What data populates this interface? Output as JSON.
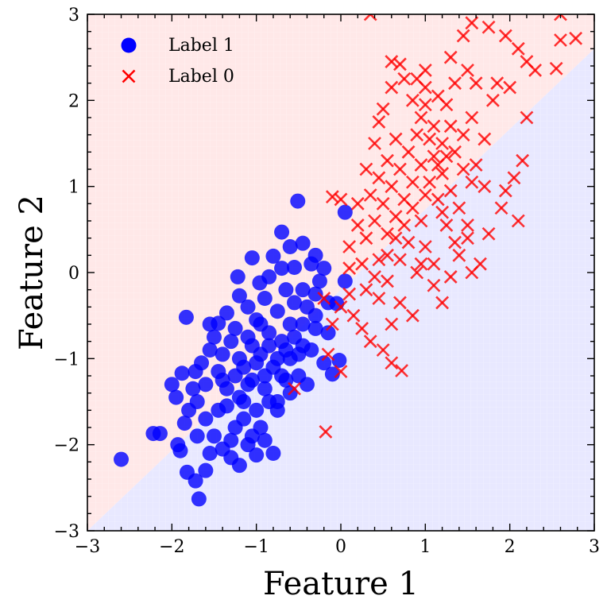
{
  "chart_data": {
    "type": "scatter",
    "title": "",
    "xlabel": "Feature 1",
    "ylabel": "Feature 2",
    "xlim": [
      -3,
      3
    ],
    "ylim": [
      -3,
      3
    ],
    "x_ticks": [
      -3,
      -2,
      -1,
      0,
      1,
      2,
      3
    ],
    "y_ticks": [
      -3,
      -2,
      -1,
      0,
      1,
      2,
      3
    ],
    "x_tick_labels": [
      "−3",
      "−2",
      "−1",
      "0",
      "1",
      "2",
      "3"
    ],
    "y_tick_labels": [
      "−3",
      "−2",
      "−1",
      "0",
      "1",
      "2",
      "3"
    ],
    "grid": false,
    "legend_position": "top-left",
    "background": {
      "type": "linear-decision-boundary",
      "boundary_points": [
        [
          -3,
          -3
        ],
        [
          3,
          2.6
        ]
      ],
      "region_above_color": "#ffe8e8",
      "region_below_color": "#e8e8ff"
    },
    "series": [
      {
        "name": "Label 1",
        "marker": "circle",
        "color": "#0000ff",
        "points": [
          [
            -2.6,
            -2.17
          ],
          [
            -1.68,
            -2.63
          ],
          [
            -1.72,
            -2.42
          ],
          [
            -1.82,
            -2.32
          ],
          [
            -1.9,
            -2.07
          ],
          [
            -1.93,
            -2.0
          ],
          [
            -2.14,
            -1.87
          ],
          [
            -2.22,
            -1.87
          ],
          [
            -1.88,
            -1.17
          ],
          [
            -1.83,
            -0.52
          ],
          [
            -1.72,
            -1.15
          ],
          [
            -1.55,
            -0.6
          ],
          [
            -1.45,
            -0.59
          ],
          [
            -1.35,
            -0.47
          ],
          [
            -1.22,
            -0.05
          ],
          [
            -1.2,
            -0.27
          ],
          [
            -1.05,
            0.17
          ],
          [
            -0.96,
            -0.12
          ],
          [
            -0.8,
            0.19
          ],
          [
            -0.7,
            0.47
          ],
          [
            -0.55,
            0.06
          ],
          [
            -0.51,
            0.83
          ],
          [
            -0.45,
            0.34
          ],
          [
            -0.3,
            0.2
          ],
          [
            -0.2,
            0.05
          ],
          [
            -0.05,
            -0.36
          ],
          [
            0.05,
            0.7
          ],
          [
            -0.15,
            -0.7
          ],
          [
            -0.2,
            -1.05
          ],
          [
            -0.1,
            -1.18
          ],
          [
            -0.02,
            -1.02
          ],
          [
            -0.3,
            -0.5
          ],
          [
            -0.45,
            -0.85
          ],
          [
            -0.5,
            -1.2
          ],
          [
            -0.6,
            -1.4
          ],
          [
            -0.75,
            -1.6
          ],
          [
            -0.8,
            -2.1
          ],
          [
            -0.9,
            -1.95
          ],
          [
            -1.0,
            -2.12
          ],
          [
            -1.1,
            -2.0
          ],
          [
            -1.2,
            -2.24
          ],
          [
            -1.3,
            -2.15
          ],
          [
            -1.4,
            -2.05
          ],
          [
            -1.5,
            -1.9
          ],
          [
            -1.6,
            -1.7
          ],
          [
            -1.7,
            -1.5
          ],
          [
            -1.8,
            -1.6
          ],
          [
            -1.75,
            -1.35
          ],
          [
            -1.65,
            -1.05
          ],
          [
            -1.55,
            -0.9
          ],
          [
            -1.5,
            -0.75
          ],
          [
            -1.4,
            -1.25
          ],
          [
            -1.35,
            -1.55
          ],
          [
            -1.25,
            -1.8
          ],
          [
            -1.15,
            -1.5
          ],
          [
            -1.05,
            -1.25
          ],
          [
            -0.95,
            -0.95
          ],
          [
            -0.85,
            -0.7
          ],
          [
            -0.75,
            -0.45
          ],
          [
            -0.65,
            -0.2
          ],
          [
            -0.55,
            -0.35
          ],
          [
            -0.45,
            -0.6
          ],
          [
            -0.35,
            -0.9
          ],
          [
            -0.4,
            -1.3
          ],
          [
            -0.6,
            -1.0
          ],
          [
            -0.7,
            -0.8
          ],
          [
            -0.8,
            -1.1
          ],
          [
            -0.9,
            -1.35
          ],
          [
            -1.0,
            -1.6
          ],
          [
            -1.1,
            -1.3
          ],
          [
            -1.2,
            -1.0
          ],
          [
            -1.3,
            -0.8
          ],
          [
            -1.4,
            -0.95
          ],
          [
            -1.25,
            -0.65
          ],
          [
            -1.1,
            -0.4
          ],
          [
            -1.0,
            -0.55
          ],
          [
            -0.9,
            -0.3
          ],
          [
            -0.85,
            -0.05
          ],
          [
            -0.7,
            0.05
          ],
          [
            -0.6,
            -0.6
          ],
          [
            -0.5,
            -0.95
          ],
          [
            -0.65,
            -1.25
          ],
          [
            -0.75,
            -1.5
          ],
          [
            -0.95,
            -1.8
          ],
          [
            -1.15,
            -1.7
          ],
          [
            -1.35,
            -1.35
          ],
          [
            -1.45,
            -1.15
          ],
          [
            -1.6,
            -1.3
          ],
          [
            -1.7,
            -1.9
          ],
          [
            -1.55,
            -2.1
          ],
          [
            -1.3,
            -1.95
          ],
          [
            -1.05,
            -1.9
          ],
          [
            -0.85,
            -1.5
          ],
          [
            -0.7,
            -1.2
          ],
          [
            -0.55,
            -0.75
          ],
          [
            -0.4,
            -0.4
          ],
          [
            -0.3,
            -0.65
          ],
          [
            -0.25,
            -0.1
          ],
          [
            -0.35,
            0.1
          ],
          [
            -0.95,
            -0.6
          ],
          [
            -1.05,
            -0.85
          ],
          [
            -1.15,
            -1.1
          ],
          [
            -1.25,
            -1.2
          ],
          [
            -0.85,
            -0.85
          ],
          [
            -0.75,
            -1.0
          ],
          [
            -0.65,
            -0.9
          ],
          [
            -1.0,
            -1.05
          ],
          [
            -1.1,
            -0.75
          ],
          [
            -0.9,
            -1.2
          ],
          [
            -1.2,
            -1.45
          ],
          [
            -0.45,
            -0.2
          ],
          [
            -0.15,
            -0.35
          ],
          [
            0.05,
            -0.1
          ],
          [
            -1.95,
            -1.45
          ],
          [
            -2.0,
            -1.3
          ],
          [
            -1.85,
            -1.75
          ],
          [
            -1.6,
            -2.3
          ],
          [
            -1.45,
            -1.6
          ],
          [
            -0.6,
            0.3
          ],
          [
            -0.3,
            -0.25
          ]
        ]
      },
      {
        "name": "Label 0",
        "marker": "x",
        "color": "#ff0000",
        "points": [
          [
            0.35,
            3.0
          ],
          [
            0.6,
            2.45
          ],
          [
            0.7,
            2.42
          ],
          [
            1.0,
            2.35
          ],
          [
            1.3,
            2.5
          ],
          [
            1.45,
            2.75
          ],
          [
            1.55,
            2.9
          ],
          [
            1.75,
            2.85
          ],
          [
            1.95,
            2.75
          ],
          [
            2.1,
            2.6
          ],
          [
            2.2,
            2.45
          ],
          [
            2.55,
            2.37
          ],
          [
            2.6,
            2.7
          ],
          [
            2.78,
            2.72
          ],
          [
            2.6,
            3.0
          ],
          [
            2.0,
            2.15
          ],
          [
            1.85,
            2.2
          ],
          [
            2.2,
            1.8
          ],
          [
            2.15,
            1.3
          ],
          [
            2.05,
            1.1
          ],
          [
            1.95,
            0.95
          ],
          [
            2.1,
            0.6
          ],
          [
            1.75,
            0.45
          ],
          [
            1.9,
            0.75
          ],
          [
            1.7,
            1.55
          ],
          [
            1.65,
            0.1
          ],
          [
            1.5,
            0.4
          ],
          [
            1.4,
            0.2
          ],
          [
            1.2,
            0.7
          ],
          [
            1.0,
            0.3
          ],
          [
            0.9,
            0.0
          ],
          [
            1.1,
            -0.15
          ],
          [
            1.2,
            -0.35
          ],
          [
            0.85,
            -0.5
          ],
          [
            0.7,
            -0.35
          ],
          [
            0.6,
            -0.6
          ],
          [
            0.5,
            -0.9
          ],
          [
            0.6,
            -1.05
          ],
          [
            0.72,
            -1.14
          ],
          [
            0.35,
            -0.8
          ],
          [
            0.15,
            -0.5
          ],
          [
            0.0,
            -0.4
          ],
          [
            0.0,
            -1.15
          ],
          [
            -0.15,
            -0.95
          ],
          [
            -0.18,
            -1.85
          ],
          [
            -0.55,
            -1.35
          ],
          [
            0.3,
            -0.2
          ],
          [
            0.45,
            0.15
          ],
          [
            0.1,
            0.3
          ],
          [
            0.2,
            0.55
          ],
          [
            -0.1,
            0.88
          ],
          [
            0.0,
            0.85
          ],
          [
            0.3,
            1.2
          ],
          [
            0.4,
            1.5
          ],
          [
            0.45,
            1.75
          ],
          [
            0.5,
            1.9
          ],
          [
            0.6,
            2.15
          ],
          [
            0.75,
            2.25
          ],
          [
            0.85,
            2.0
          ],
          [
            0.95,
            1.8
          ],
          [
            1.05,
            1.55
          ],
          [
            1.1,
            1.35
          ],
          [
            1.2,
            1.15
          ],
          [
            1.3,
            0.95
          ],
          [
            1.4,
            0.75
          ],
          [
            1.5,
            0.55
          ],
          [
            1.35,
            1.4
          ],
          [
            1.45,
            1.6
          ],
          [
            1.55,
            1.8
          ],
          [
            1.25,
            1.95
          ],
          [
            1.15,
            2.05
          ],
          [
            1.0,
            2.15
          ],
          [
            0.9,
            1.6
          ],
          [
            0.8,
            1.4
          ],
          [
            0.7,
            1.2
          ],
          [
            0.6,
            1.0
          ],
          [
            0.5,
            0.8
          ],
          [
            0.4,
            0.6
          ],
          [
            0.3,
            0.4
          ],
          [
            0.55,
            0.45
          ],
          [
            0.65,
            0.65
          ],
          [
            0.75,
            0.85
          ],
          [
            0.85,
            1.05
          ],
          [
            0.95,
            1.25
          ],
          [
            1.05,
            1.05
          ],
          [
            1.15,
            0.85
          ],
          [
            1.25,
            0.55
          ],
          [
            1.35,
            0.35
          ],
          [
            0.95,
            0.6
          ],
          [
            0.8,
            0.35
          ],
          [
            0.7,
            0.15
          ],
          [
            0.55,
            -0.1
          ],
          [
            0.45,
            -0.3
          ],
          [
            0.25,
            -0.65
          ],
          [
            0.1,
            -0.25
          ],
          [
            1.6,
            1.25
          ],
          [
            1.7,
            1.0
          ],
          [
            1.55,
            1.05
          ],
          [
            1.45,
            1.2
          ],
          [
            1.3,
            1.7
          ],
          [
            1.2,
            1.5
          ],
          [
            1.1,
            1.7
          ],
          [
            1.0,
            1.95
          ],
          [
            0.9,
            2.25
          ],
          [
            0.65,
            1.55
          ],
          [
            0.55,
            1.3
          ],
          [
            0.45,
            1.1
          ],
          [
            0.35,
            0.9
          ],
          [
            0.2,
            0.8
          ],
          [
            0.85,
            0.75
          ],
          [
            1.0,
            0.9
          ],
          [
            1.15,
            1.25
          ],
          [
            1.25,
            1.35
          ],
          [
            0.75,
            0.55
          ],
          [
            0.65,
            0.4
          ],
          [
            -0.2,
            -0.3
          ],
          [
            -0.1,
            -0.6
          ],
          [
            0.1,
            0.05
          ],
          [
            1.8,
            2.0
          ],
          [
            1.6,
            2.2
          ],
          [
            2.3,
            2.35
          ],
          [
            1.5,
            2.35
          ],
          [
            1.35,
            2.2
          ],
          [
            0.95,
            0.1
          ],
          [
            1.3,
            -0.05
          ],
          [
            1.1,
            0.1
          ],
          [
            0.4,
            -0.05
          ],
          [
            0.25,
            0.1
          ],
          [
            0.55,
            0.2
          ],
          [
            1.55,
            0.0
          ]
        ]
      }
    ]
  }
}
